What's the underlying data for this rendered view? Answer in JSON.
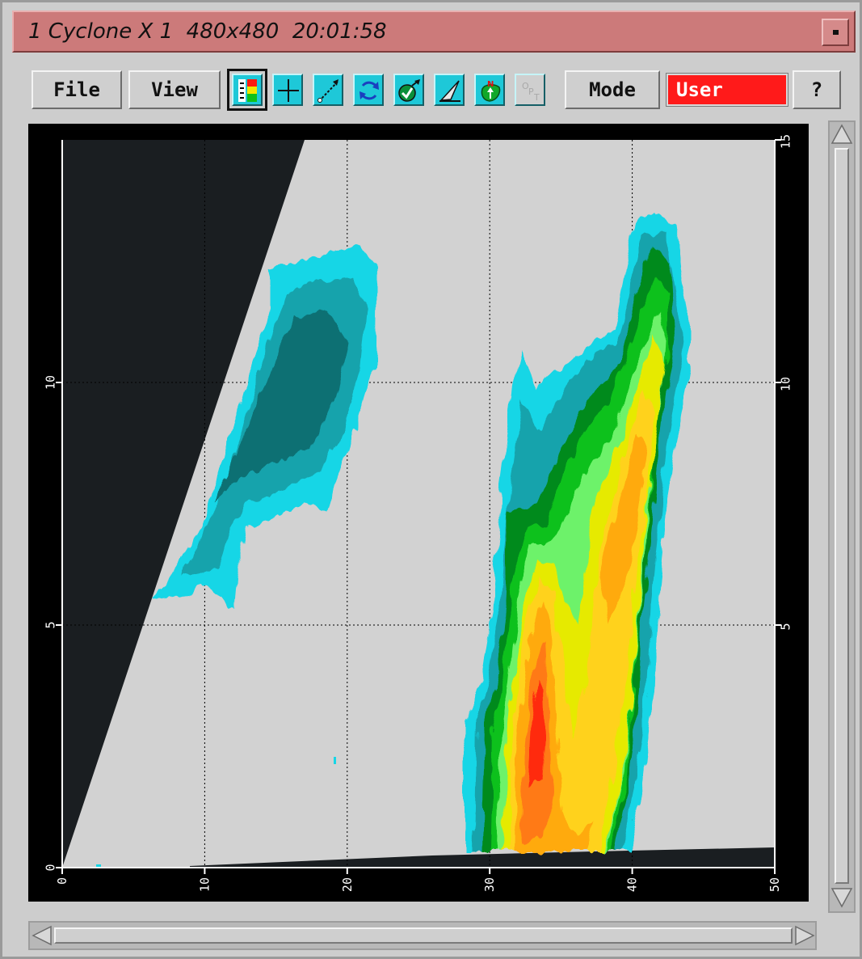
{
  "window": {
    "title": "1 Cyclone X 1  480x480  20:01:58"
  },
  "toolbar": {
    "file_label": "File",
    "view_label": "View",
    "mode_label": "Mode",
    "user_field": "User",
    "help_label": "?",
    "tools": [
      {
        "name": "color-scale-icon",
        "selected": true
      },
      {
        "name": "crosshair-icon"
      },
      {
        "name": "measure-line-icon"
      },
      {
        "name": "rotate-icon"
      },
      {
        "name": "check-location-icon"
      },
      {
        "name": "cut-line-icon"
      },
      {
        "name": "north-map-icon"
      },
      {
        "name": "options-icon",
        "disabled": true
      }
    ]
  },
  "colors": {
    "title_bar": "#cc7a7a",
    "plot_background": "#d2d2d2",
    "no_data": "#1a1e21",
    "user_field": "#ff1a1a",
    "tool_button": "#1ec8d8",
    "echo_palette": [
      "#0f6f73",
      "#14a3ac",
      "#16d6e6",
      "#008a1e",
      "#10c11a",
      "#6df26a",
      "#e6ea00",
      "#ffd21a",
      "#ffaa10",
      "#ff7a18",
      "#ff2a10"
    ]
  },
  "chart_data": {
    "type": "heatmap",
    "title": "",
    "xlabel": "",
    "ylabel": "",
    "xlim": [
      0,
      50
    ],
    "ylim": [
      0,
      15
    ],
    "x_ticks": [
      "0",
      "10",
      "20",
      "30",
      "40",
      "50"
    ],
    "y_ticks_left": [
      "0",
      "5",
      "10"
    ],
    "y_ticks_right": [
      "5",
      "10",
      "15"
    ],
    "grid": true
  }
}
